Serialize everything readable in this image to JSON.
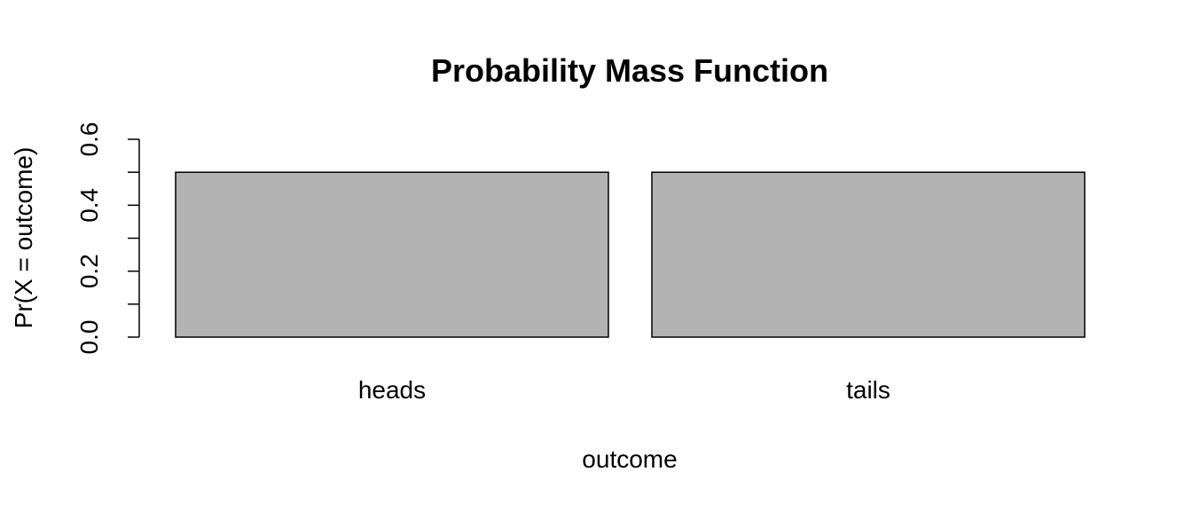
{
  "chart_data": {
    "type": "bar",
    "title": "Probability Mass Function",
    "xlabel": "outcome",
    "ylabel": "Pr(X = outcome)",
    "categories": [
      "heads",
      "tails"
    ],
    "values": [
      0.5,
      0.5
    ],
    "ylim": [
      0,
      0.6
    ],
    "yticks": [
      "0.0",
      "0.2",
      "0.4",
      "0.6"
    ],
    "ytick_values": [
      0,
      0.2,
      0.4,
      0.6
    ],
    "yminor_values": [
      0.1,
      0.3,
      0.5
    ],
    "grid": false,
    "bar_color": "#b3b3b3",
    "border_color": "#000000"
  }
}
